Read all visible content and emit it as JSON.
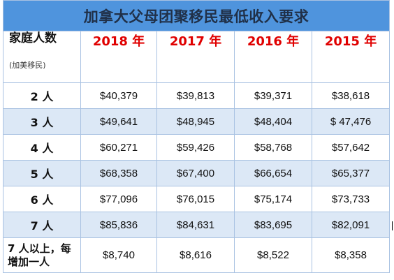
{
  "table": {
    "title": "加拿大父母团聚移民最低收入要求",
    "label_header": "家庭人数",
    "label_subheader": "(加美移民)",
    "years": [
      "2018 年",
      "2017 年",
      "2016 年",
      "2015 年"
    ],
    "rows": [
      {
        "label": "2 人",
        "values": [
          "$40,379",
          "$39,813",
          "$39,371",
          "$38,618"
        ]
      },
      {
        "label": "3 人",
        "values": [
          "$49,641",
          "$48,945",
          "$48,404",
          "$ 47,476"
        ]
      },
      {
        "label": "4 人",
        "values": [
          "$60,271",
          "$59,426",
          "$58,768",
          "$57,642"
        ]
      },
      {
        "label": "5 人",
        "values": [
          "$68,358",
          "$67,400",
          "$66,654",
          "$65,377"
        ]
      },
      {
        "label": "6 人",
        "values": [
          "$77,096",
          "$76,015",
          "$75,174",
          "$73,733"
        ]
      },
      {
        "label": "7 人",
        "values": [
          "$85,836",
          "$84,631",
          "$83,695",
          "$82,091"
        ]
      },
      {
        "label": "7 人以上，每增加一人",
        "values": [
          "$8,740",
          "$8,616",
          "$8,522",
          "$8,358"
        ]
      }
    ]
  },
  "colors": {
    "title_background": "#4f94dd",
    "year_text": "#e00000",
    "shaded_row": "#dce8f6",
    "border": "#a9c2e2"
  }
}
